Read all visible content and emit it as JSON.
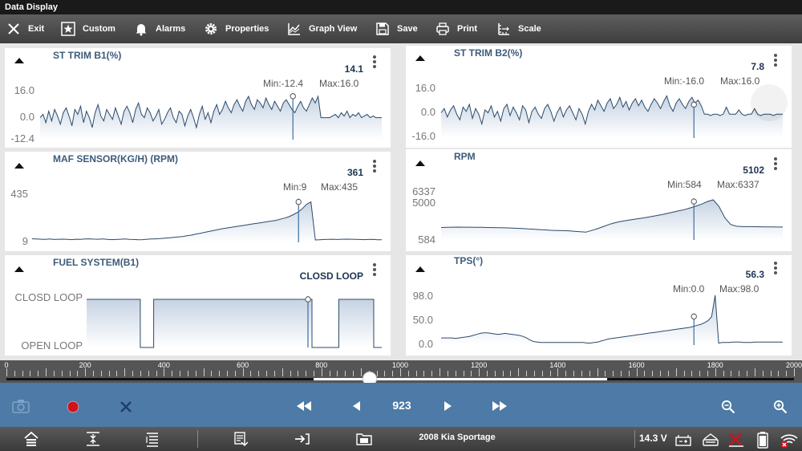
{
  "window": {
    "title": "Data  Display"
  },
  "toolbar": {
    "exit": "Exit",
    "custom": "Custom",
    "alarms": "Alarms",
    "properties": "Properties",
    "graph_view": "Graph View",
    "save": "Save",
    "print": "Print",
    "scale": "Scale",
    "icons": [
      "close-icon",
      "star-icon",
      "bell-icon",
      "gear-icon",
      "graph-icon",
      "floppy-icon",
      "printer-icon",
      "scale-icon"
    ]
  },
  "panels": {
    "st_trim_b1": {
      "title": "ST TRIM B1(%)",
      "value": "14.1",
      "min_text": "Min:-12.4",
      "max_text": "Max:16.0",
      "y_labels": [
        "16.0",
        "0.0",
        "-12.4"
      ],
      "y_range": [
        -12.4,
        16.0
      ],
      "cursor_value": 14.1,
      "values": [
        1,
        3,
        -2,
        5,
        -1,
        6,
        2,
        -3,
        4,
        7,
        2,
        -4,
        6,
        3,
        8,
        -2,
        5,
        1,
        -5,
        4,
        9,
        2,
        -1,
        6,
        3,
        0,
        7,
        2,
        -3,
        5,
        8,
        4,
        -2,
        6,
        10,
        3,
        1,
        7,
        4,
        -1,
        2,
        6,
        -3,
        0,
        4,
        7,
        1,
        -2,
        5,
        3,
        -4,
        2,
        6,
        1,
        -5,
        3,
        8,
        0,
        4,
        -2,
        5,
        9,
        3,
        6,
        11,
        7,
        4,
        9,
        12,
        8,
        5,
        11,
        14,
        9,
        6,
        12,
        10,
        7,
        13,
        9,
        6,
        11,
        8,
        5,
        10,
        12,
        9,
        6,
        4,
        8,
        11,
        7,
        5,
        9,
        13,
        10,
        14,
        1,
        1,
        1,
        1,
        2,
        3,
        1,
        4,
        2,
        5,
        1,
        3,
        2,
        4,
        1,
        2,
        3,
        1,
        2,
        1,
        1,
        1
      ]
    },
    "st_trim_b2": {
      "title": "ST TRIM B2(%)",
      "value": "7.8",
      "min_text": "Min:-16.0",
      "max_text": "Max:16.0",
      "y_labels": [
        "16.0",
        "0.0",
        "-16.0"
      ],
      "y_range": [
        -16.0,
        16.0
      ],
      "cursor_value": 7.8,
      "values": [
        2,
        5,
        -1,
        4,
        7,
        1,
        -3,
        6,
        3,
        8,
        -2,
        5,
        1,
        -6,
        4,
        2,
        7,
        -1,
        3,
        -4,
        5,
        8,
        0,
        6,
        2,
        -3,
        7,
        4,
        -5,
        3,
        6,
        1,
        -2,
        5,
        8,
        3,
        -4,
        2,
        6,
        -1,
        4,
        7,
        2,
        -3,
        5,
        1,
        -6,
        3,
        8,
        4,
        11,
        7,
        3,
        9,
        12,
        5,
        8,
        13,
        6,
        10,
        4,
        9,
        12,
        7,
        11,
        6,
        3,
        8,
        12,
        9,
        5,
        10,
        14,
        7,
        3,
        9,
        12,
        8,
        5,
        10,
        13,
        9,
        11,
        7,
        1,
        1,
        0,
        1,
        1,
        0,
        1,
        6,
        1,
        1,
        1,
        4,
        1,
        0,
        1,
        1,
        5,
        1,
        0,
        1,
        1,
        1,
        0,
        1,
        1,
        1
      ]
    },
    "maf_sensor": {
      "title": "MAF SENSOR(KG/H) (RPM)",
      "value": "361",
      "min_text": "Min:9",
      "max_text": "Max:435",
      "y_labels": [
        "435",
        "9"
      ],
      "y_range": [
        9,
        435
      ],
      "cursor_value": 361,
      "values": [
        40,
        38,
        36,
        35,
        38,
        34,
        36,
        37,
        35,
        33,
        36,
        35,
        38,
        40,
        37,
        36,
        39,
        35,
        33,
        34,
        36,
        38,
        35,
        34,
        32,
        33,
        36,
        38,
        40,
        42,
        45,
        48,
        52,
        56,
        60,
        66,
        72,
        80,
        88,
        96,
        104,
        112,
        120,
        128,
        134,
        140,
        146,
        152,
        158,
        164,
        170,
        176,
        182,
        188,
        194,
        200,
        210,
        220,
        232,
        250,
        270,
        300,
        340,
        361,
        30,
        32,
        34,
        35,
        36,
        34,
        36,
        37,
        36,
        35,
        34,
        33,
        34,
        35,
        32,
        32
      ]
    },
    "rpm": {
      "title": "RPM",
      "value": "5102",
      "min_text": "Min:584",
      "max_text": "Max:6337",
      "y_labels": [
        "6337",
        "5000",
        "584"
      ],
      "y_range": [
        584,
        6337
      ],
      "cursor_value": 5102,
      "values": [
        2050,
        2070,
        2080,
        2090,
        2085,
        2080,
        2070,
        2060,
        2050,
        2040,
        2030,
        2010,
        1990,
        1950,
        1920,
        1880,
        1850,
        1800,
        1760,
        1720,
        1700,
        1680,
        1660,
        1600,
        1550,
        1500,
        1700,
        1900,
        2150,
        2400,
        2600,
        2750,
        2880,
        2980,
        3080,
        3180,
        3300,
        3420,
        3550,
        3700,
        3850,
        4000,
        4150,
        4350,
        4550,
        4800,
        5102,
        5300,
        4500,
        3200,
        2400,
        2200,
        2150,
        2150,
        2140,
        2130,
        2120,
        2110,
        2100,
        2100
      ]
    },
    "fuel_system": {
      "title": "FUEL SYSTEM(B1)",
      "value": "CLOSD LOOP",
      "y_labels": [
        "CLOSD LOOP",
        "OPEN LOOP"
      ],
      "cursor_value": 1,
      "values": [
        1,
        1,
        1,
        1,
        1,
        1,
        1,
        1,
        1,
        1,
        1,
        1,
        1,
        1,
        1,
        1,
        1,
        1,
        1,
        1,
        0,
        0,
        0,
        0,
        0,
        1,
        1,
        1,
        1,
        1,
        1,
        1,
        1,
        1,
        1,
        1,
        1,
        1,
        1,
        1,
        1,
        1,
        1,
        1,
        1,
        1,
        1,
        1,
        1,
        1,
        1,
        1,
        1,
        1,
        1,
        1,
        1,
        1,
        1,
        1,
        1,
        1,
        1,
        1,
        1,
        1,
        1,
        1,
        1,
        1,
        1,
        1,
        1,
        1,
        1,
        1,
        1,
        1,
        1,
        1,
        1,
        1,
        1,
        1,
        0,
        0,
        0,
        0,
        0,
        0,
        0,
        0,
        0,
        0,
        1,
        1,
        1,
        1,
        1,
        1,
        1,
        1,
        1,
        1,
        1,
        1,
        1,
        0,
        0,
        0
      ]
    },
    "tps": {
      "title": "TPS(°)",
      "value": "56.3",
      "min_text": "Min:0.0",
      "max_text": "Max:98.0",
      "y_labels": [
        "98.0",
        "50.0",
        "0.0"
      ],
      "y_range": [
        0.0,
        98.0
      ],
      "cursor_value": 56.3,
      "values": [
        14,
        14,
        14,
        14,
        13,
        14,
        15,
        16,
        17,
        19,
        21,
        23,
        24,
        24,
        23,
        22,
        21,
        22,
        23,
        22,
        21,
        20,
        19,
        17,
        14,
        10,
        7,
        6,
        5,
        5,
        5,
        5,
        5,
        5,
        5,
        5,
        5,
        5,
        5,
        5,
        5,
        4,
        4,
        5,
        6,
        8,
        10,
        12,
        13,
        14,
        15,
        16,
        17,
        18,
        19,
        20,
        21,
        22,
        23,
        24,
        25,
        26,
        27,
        28,
        29,
        30,
        31,
        32,
        33,
        34,
        35,
        37,
        39,
        41,
        44,
        48,
        56,
        98,
        4,
        5,
        5,
        5,
        6,
        6,
        6,
        5,
        5,
        5,
        6,
        6,
        6,
        6,
        6,
        6,
        6,
        6,
        6
      ]
    }
  },
  "timeline": {
    "ticks": [
      "0",
      "200",
      "400",
      "600",
      "800",
      "1000",
      "1200",
      "1400",
      "1600",
      "1800",
      "2000"
    ],
    "min": 0,
    "max": 2000,
    "position": 923,
    "buffer_end": 1525
  },
  "controls": {
    "frame": "923",
    "icons": [
      "camera-icon",
      "record-icon",
      "clear-icon",
      "rewind-icon",
      "step-back-icon",
      "step-forward-icon",
      "fast-forward-icon",
      "zoom-out-icon",
      "zoom-in-icon"
    ]
  },
  "status": {
    "vehicle": "2008 Kia Sportage",
    "voltage": "14.3 V",
    "icons": [
      "home-icon",
      "collapse-icon",
      "list-icon",
      "vehicle-info-icon",
      "shortcut-icon",
      "folder-icon",
      "battery-connector-icon",
      "vci-icon",
      "no-connection-icon",
      "battery-icon",
      "wifi-icon"
    ]
  },
  "colors": {
    "line": "#2c4a6a",
    "fill_top": "#c6d3e3",
    "fill_bottom": "#ffffff",
    "control_bar": "#4d7aa6",
    "record": "#d1121c"
  }
}
